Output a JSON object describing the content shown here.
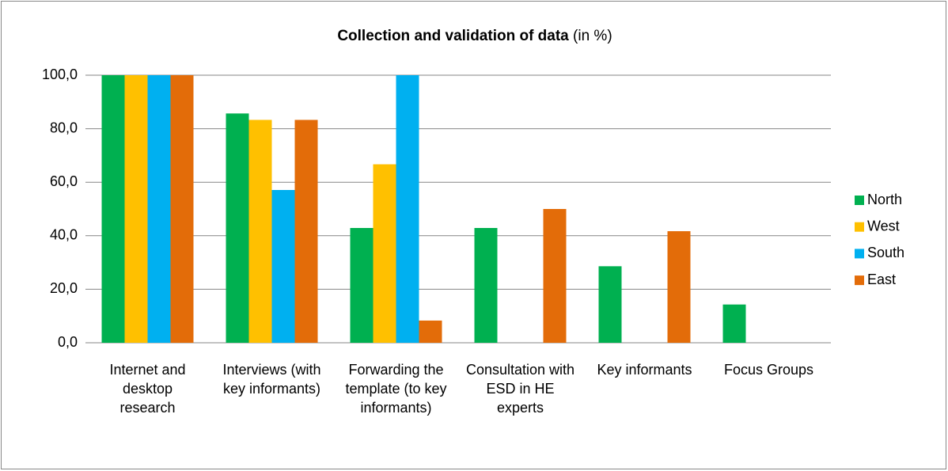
{
  "chart_data": {
    "type": "bar",
    "title": "Collection and validation of data",
    "title_unit": "(in %)",
    "categories": [
      "Internet and desktop research",
      "Interviews (with key informants)",
      "Forwarding the template (to key informants)",
      "Consultation with ESD in HE experts",
      "Key informants",
      "Focus Groups"
    ],
    "series": [
      {
        "name": "North",
        "color": "#00b050",
        "values": [
          100,
          85.7,
          42.9,
          42.9,
          28.6,
          14.3
        ]
      },
      {
        "name": "West",
        "color": "#ffc000",
        "values": [
          100,
          83.3,
          66.7,
          0,
          0,
          0
        ]
      },
      {
        "name": "South",
        "color": "#00b0f0",
        "values": [
          100,
          57.1,
          100,
          0,
          0,
          0
        ]
      },
      {
        "name": "East",
        "color": "#e36c09",
        "values": [
          100,
          83.3,
          8.3,
          50,
          41.7,
          0
        ]
      }
    ],
    "ylim": [
      0,
      100
    ],
    "yticks": [
      {
        "value": 0,
        "label": "0,0"
      },
      {
        "value": 20,
        "label": "20,0"
      },
      {
        "value": 40,
        "label": "40,0"
      },
      {
        "value": 60,
        "label": "60,0"
      },
      {
        "value": 80,
        "label": "80,0"
      },
      {
        "value": 100,
        "label": "100,0"
      }
    ],
    "grid": true,
    "legend": "right"
  }
}
